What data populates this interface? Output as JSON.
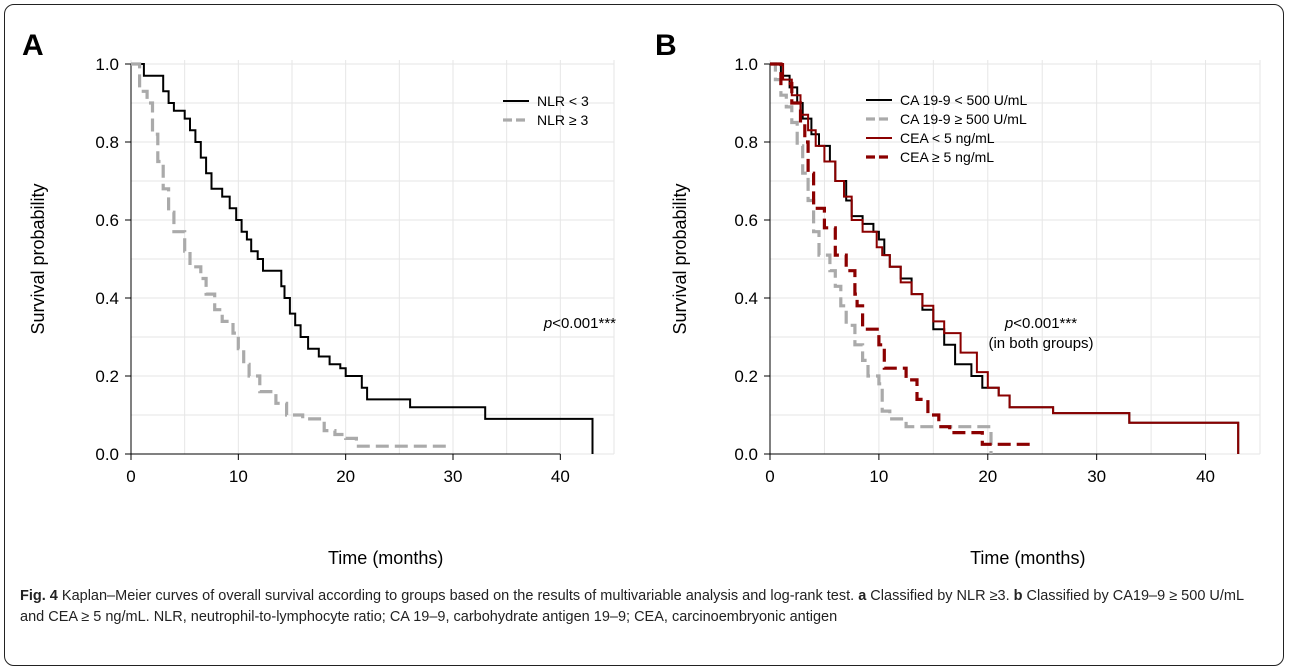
{
  "caption": {
    "fig_label": "Fig. 4",
    "intro": " Kaplan–Meier curves of overall survival according to groups based on the results of multivariable analysis and log-rank test. ",
    "a_label": "a",
    "a_text": " Classified by NLR ≥3. ",
    "b_label": "b",
    "b_text": " Classified by CA19–9 ≥ 500 U/mL and CEA ≥ 5 ng/mL. NLR, neutrophil-to-lymphocyte ratio; CA 19–9, carbohydrate antigen 19–9; CEA, carcinoembryonic antigen"
  },
  "colors": {
    "black": "#000000",
    "gray": "#aaaaaa",
    "darkred": "#8b0000",
    "grid": "#e6e6e6"
  },
  "chart_data": [
    {
      "type": "line",
      "panel_label": "A",
      "xlabel": "Time (months)",
      "ylabel": "Survival probability",
      "xlim": [
        0,
        45
      ],
      "ylim": [
        0,
        1
      ],
      "xticks": [
        0,
        10,
        20,
        30,
        40
      ],
      "yticks": [
        "0.0",
        "0.2",
        "0.4",
        "0.6",
        "0.8",
        "1.0"
      ],
      "grid": true,
      "legend": "top-right",
      "annotation": {
        "p_italic": "p",
        "p_rest": "<0.001***",
        "sub": ""
      },
      "series": [
        {
          "name": "NLR < 3",
          "color": "#000000",
          "dash": "solid",
          "points": [
            [
              0,
              1.0
            ],
            [
              1.2,
              0.97
            ],
            [
              2.5,
              0.97
            ],
            [
              3.0,
              0.93
            ],
            [
              3.5,
              0.9
            ],
            [
              4.0,
              0.88
            ],
            [
              5.0,
              0.86
            ],
            [
              5.5,
              0.83
            ],
            [
              6.0,
              0.8
            ],
            [
              6.5,
              0.76
            ],
            [
              7.0,
              0.72
            ],
            [
              7.5,
              0.68
            ],
            [
              8.5,
              0.66
            ],
            [
              9.2,
              0.63
            ],
            [
              9.8,
              0.6
            ],
            [
              10.3,
              0.57
            ],
            [
              10.8,
              0.55
            ],
            [
              11.2,
              0.52
            ],
            [
              11.8,
              0.5
            ],
            [
              12.3,
              0.47
            ],
            [
              13.5,
              0.47
            ],
            [
              14.0,
              0.43
            ],
            [
              14.3,
              0.4
            ],
            [
              14.8,
              0.36
            ],
            [
              15.3,
              0.33
            ],
            [
              15.8,
              0.3
            ],
            [
              16.5,
              0.27
            ],
            [
              17.5,
              0.25
            ],
            [
              18.5,
              0.23
            ],
            [
              19.5,
              0.22
            ],
            [
              20.0,
              0.2
            ],
            [
              21.5,
              0.17
            ],
            [
              22.0,
              0.14
            ],
            [
              26.0,
              0.12
            ],
            [
              33.0,
              0.09
            ],
            [
              43.0,
              0.09
            ],
            [
              43.0,
              0.0
            ]
          ]
        },
        {
          "name": "NLR ≥ 3",
          "color": "#aaaaaa",
          "dash": "dashed",
          "points": [
            [
              0,
              1.0
            ],
            [
              0.8,
              0.93
            ],
            [
              1.5,
              0.9
            ],
            [
              2.0,
              0.82
            ],
            [
              2.5,
              0.75
            ],
            [
              3.0,
              0.68
            ],
            [
              3.5,
              0.62
            ],
            [
              4.0,
              0.57
            ],
            [
              5.0,
              0.52
            ],
            [
              5.5,
              0.48
            ],
            [
              6.5,
              0.45
            ],
            [
              7.0,
              0.41
            ],
            [
              7.8,
              0.37
            ],
            [
              8.5,
              0.34
            ],
            [
              9.5,
              0.31
            ],
            [
              10.0,
              0.27
            ],
            [
              10.5,
              0.23
            ],
            [
              11.0,
              0.2
            ],
            [
              12.0,
              0.16
            ],
            [
              13.5,
              0.13
            ],
            [
              14.5,
              0.1
            ],
            [
              16.0,
              0.09
            ],
            [
              18.0,
              0.06
            ],
            [
              19.0,
              0.05
            ],
            [
              20.0,
              0.04
            ],
            [
              21.0,
              0.02
            ],
            [
              29.5,
              0.02
            ]
          ]
        }
      ]
    },
    {
      "type": "line",
      "panel_label": "B",
      "xlabel": "Time (months)",
      "ylabel": "Survival probability",
      "xlim": [
        0,
        45
      ],
      "ylim": [
        0,
        1
      ],
      "xticks": [
        0,
        10,
        20,
        30,
        40
      ],
      "yticks": [
        "0.0",
        "0.2",
        "0.4",
        "0.6",
        "0.8",
        "1.0"
      ],
      "grid": true,
      "legend": "top-right",
      "annotation": {
        "p_italic": "p",
        "p_rest": "<0.001***",
        "sub": "(in both groups)"
      },
      "series": [
        {
          "name": "CA 19-9 < 500 U/mL",
          "color": "#000000",
          "dash": "solid",
          "points": [
            [
              0,
              1.0
            ],
            [
              1.0,
              0.97
            ],
            [
              1.8,
              0.94
            ],
            [
              2.5,
              0.9
            ],
            [
              3.0,
              0.86
            ],
            [
              3.8,
              0.82
            ],
            [
              4.5,
              0.79
            ],
            [
              5.5,
              0.75
            ],
            [
              6.0,
              0.7
            ],
            [
              7.0,
              0.65
            ],
            [
              7.5,
              0.61
            ],
            [
              8.5,
              0.59
            ],
            [
              9.5,
              0.57
            ],
            [
              10.0,
              0.55
            ],
            [
              10.5,
              0.51
            ],
            [
              11.0,
              0.48
            ],
            [
              12.0,
              0.45
            ],
            [
              13.0,
              0.41
            ],
            [
              14.0,
              0.37
            ],
            [
              15.0,
              0.32
            ],
            [
              16.0,
              0.28
            ],
            [
              17.0,
              0.23
            ],
            [
              18.5,
              0.2
            ],
            [
              19.5,
              0.17
            ],
            [
              21.0,
              0.15
            ],
            [
              22.0,
              0.12
            ],
            [
              26.0,
              0.105
            ],
            [
              33.0,
              0.08
            ],
            [
              43.0,
              0.08
            ],
            [
              43.0,
              0.0
            ]
          ]
        },
        {
          "name": "CA 19-9 ≥ 500 U/mL",
          "color": "#aaaaaa",
          "dash": "dashed",
          "points": [
            [
              0,
              1.0
            ],
            [
              0.5,
              0.96
            ],
            [
              1.0,
              0.92
            ],
            [
              1.5,
              0.89
            ],
            [
              2.0,
              0.85
            ],
            [
              2.5,
              0.79
            ],
            [
              3.0,
              0.72
            ],
            [
              3.5,
              0.65
            ],
            [
              4.0,
              0.57
            ],
            [
              4.5,
              0.51
            ],
            [
              5.5,
              0.47
            ],
            [
              6.0,
              0.43
            ],
            [
              6.5,
              0.38
            ],
            [
              7.0,
              0.33
            ],
            [
              7.8,
              0.28
            ],
            [
              8.5,
              0.24
            ],
            [
              9.0,
              0.2
            ],
            [
              10.0,
              0.18
            ],
            [
              10.3,
              0.11
            ],
            [
              11.0,
              0.09
            ],
            [
              12.5,
              0.07
            ],
            [
              19.5,
              0.07
            ],
            [
              20.3,
              0.0
            ]
          ]
        },
        {
          "name": "CEA < 5 ng/mL",
          "color": "#8b0000",
          "dash": "solid",
          "points": [
            [
              0,
              1.0
            ],
            [
              1.2,
              0.96
            ],
            [
              2.0,
              0.92
            ],
            [
              2.8,
              0.87
            ],
            [
              3.5,
              0.83
            ],
            [
              4.2,
              0.79
            ],
            [
              5.0,
              0.75
            ],
            [
              6.0,
              0.7
            ],
            [
              6.8,
              0.66
            ],
            [
              7.5,
              0.6
            ],
            [
              8.5,
              0.57
            ],
            [
              9.8,
              0.53
            ],
            [
              10.3,
              0.51
            ],
            [
              11.0,
              0.48
            ],
            [
              12.0,
              0.44
            ],
            [
              13.0,
              0.41
            ],
            [
              14.0,
              0.38
            ],
            [
              15.0,
              0.34
            ],
            [
              16.0,
              0.31
            ],
            [
              17.5,
              0.26
            ],
            [
              19.0,
              0.21
            ],
            [
              20.0,
              0.17
            ],
            [
              21.0,
              0.15
            ],
            [
              22.0,
              0.12
            ],
            [
              26.0,
              0.105
            ],
            [
              33.0,
              0.08
            ],
            [
              43.0,
              0.08
            ],
            [
              43.0,
              0.0
            ]
          ]
        },
        {
          "name": "CEA ≥ 5 ng/mL",
          "color": "#8b0000",
          "dash": "dashed",
          "points": [
            [
              0,
              1.0
            ],
            [
              1.0,
              0.95
            ],
            [
              2.0,
              0.9
            ],
            [
              2.8,
              0.85
            ],
            [
              3.2,
              0.8
            ],
            [
              3.5,
              0.72
            ],
            [
              4.0,
              0.63
            ],
            [
              5.0,
              0.58
            ],
            [
              6.0,
              0.51
            ],
            [
              7.0,
              0.47
            ],
            [
              7.8,
              0.41
            ],
            [
              8.0,
              0.38
            ],
            [
              8.5,
              0.32
            ],
            [
              10.0,
              0.28
            ],
            [
              10.5,
              0.22
            ],
            [
              12.5,
              0.19
            ],
            [
              13.5,
              0.14
            ],
            [
              14.5,
              0.1
            ],
            [
              15.5,
              0.07
            ],
            [
              16.5,
              0.055
            ],
            [
              19.0,
              0.055
            ],
            [
              19.5,
              0.025
            ],
            [
              24.0,
              0.025
            ]
          ]
        }
      ]
    }
  ]
}
